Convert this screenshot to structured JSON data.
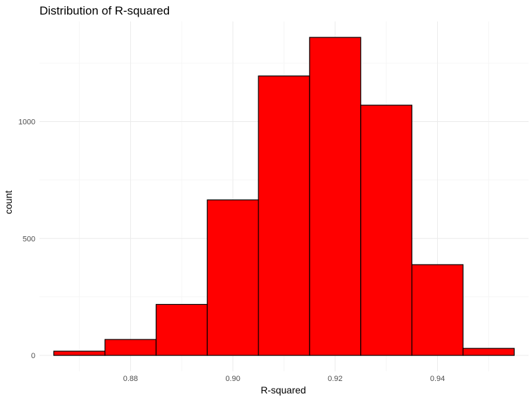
{
  "chart_data": {
    "type": "bar",
    "title": "Distribution of R-squared",
    "xlabel": "R-squared",
    "ylabel": "count",
    "bin_edges": [
      0.865,
      0.875,
      0.885,
      0.895,
      0.905,
      0.915,
      0.925,
      0.935,
      0.945,
      0.955
    ],
    "values": [
      18,
      68,
      218,
      665,
      1195,
      1360,
      1070,
      388,
      30
    ],
    "xlim": [
      0.8622,
      0.9578
    ],
    "ylim": [
      -68,
      1428
    ],
    "x_ticks": [
      0.88,
      0.9,
      0.92,
      0.94
    ],
    "x_tick_labels": [
      "0.88",
      "0.90",
      "0.92",
      "0.94"
    ],
    "y_ticks": [
      0,
      500,
      1000
    ],
    "y_tick_labels": [
      "0",
      "500",
      "1000"
    ],
    "bar_fill": "#ff0000",
    "bar_outline": "#000000",
    "grid": true
  }
}
